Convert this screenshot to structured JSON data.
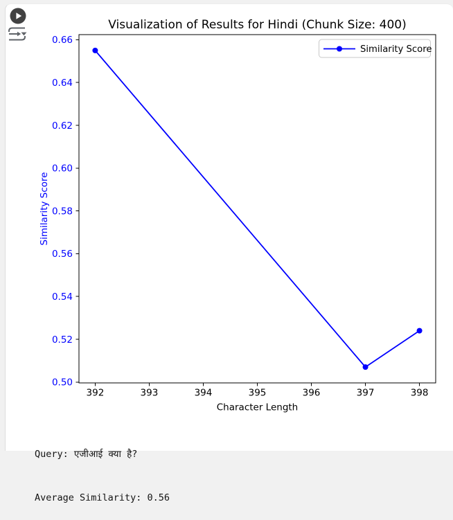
{
  "toolbar": {
    "run_button_icon": "play-circle-icon",
    "options_button_icon": "cell-options-icon",
    "icon_color": "#5f6368",
    "run_button_color": "#424242"
  },
  "chart_data": {
    "type": "line",
    "title": "Visualization of Results for Hindi (Chunk Size: 400)",
    "xlabel": "Character Length",
    "ylabel": "Similarity Score",
    "x": [
      392,
      397,
      398
    ],
    "series": [
      {
        "name": "Similarity Score",
        "values": [
          0.655,
          0.507,
          0.524
        ],
        "color": "#0000ff",
        "marker": "o"
      }
    ],
    "xlim": [
      391.7,
      398.3
    ],
    "ylim": [
      0.4996,
      0.6624
    ],
    "xticks": [
      392,
      393,
      394,
      395,
      396,
      397,
      398
    ],
    "yticks": [
      0.5,
      0.52,
      0.54,
      0.56,
      0.58,
      0.6,
      0.62,
      0.64,
      0.66
    ],
    "ytick_decimals": 2,
    "grid": false,
    "legend": {
      "position": "upper right",
      "label": "Similarity Score"
    },
    "colors": {
      "title": "#000000",
      "x_axis_text": "#000000",
      "y_axis_text": "#0000ff",
      "spine": "#000000",
      "legend_border": "#c8c8c8",
      "legend_bg": "#ffffff"
    }
  },
  "console": {
    "line1": "Query: एजीआई क्या है?",
    "line2": "Average Similarity: 0.56"
  }
}
